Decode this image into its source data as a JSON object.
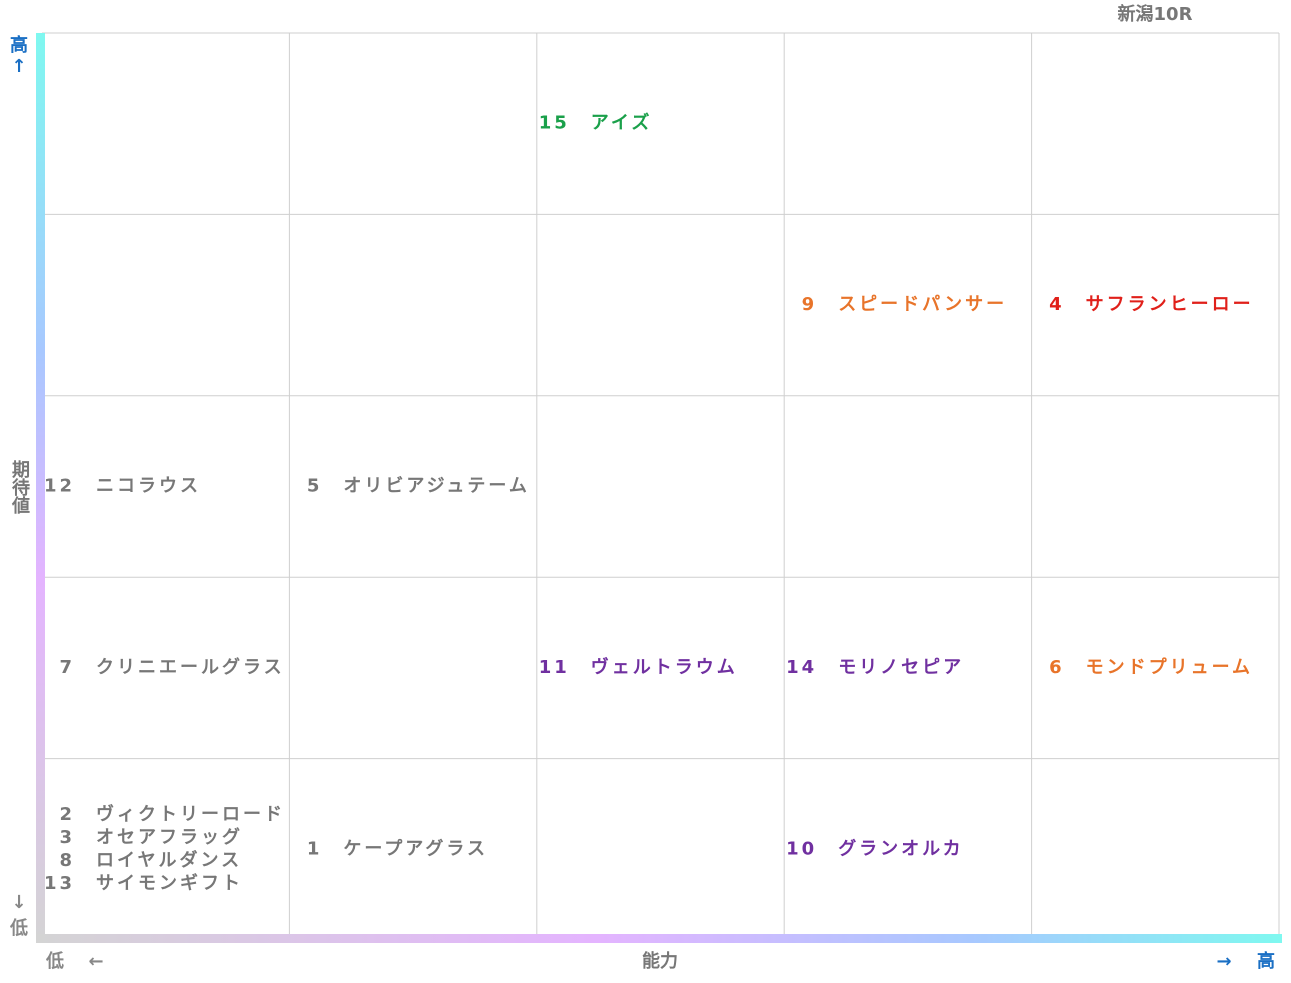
{
  "header": {
    "title": "新潟10R"
  },
  "y_axis": {
    "high": "高",
    "up_arrow": "↑",
    "label": "期待値",
    "low": "低",
    "down_arrow": "↓"
  },
  "x_axis": {
    "low": "低",
    "left_arrow": "←",
    "label": "能力",
    "right_arrow": "→",
    "high": "高"
  },
  "grid": {
    "rows": [
      [
        [],
        [],
        [
          {
            "number": "15",
            "name": "アイズ",
            "color": "#1aa04a"
          }
        ],
        [],
        []
      ],
      [
        [],
        [],
        [],
        [
          {
            "number": "9",
            "name": "スピードパンサー",
            "color": "#e8742a"
          }
        ],
        [
          {
            "number": "4",
            "name": "サフランヒーロー",
            "color": "#e0201a"
          }
        ]
      ],
      [
        [
          {
            "number": "12",
            "name": "ニコラウス",
            "color": "#777777"
          }
        ],
        [
          {
            "number": "5",
            "name": "オリビアジュテーム",
            "color": "#777777"
          }
        ],
        [],
        [],
        []
      ],
      [
        [
          {
            "number": "7",
            "name": "クリニエールグラス",
            "color": "#777777"
          }
        ],
        [],
        [
          {
            "number": "11",
            "name": "ヴェルトラウム",
            "color": "#7030a0"
          }
        ],
        [
          {
            "number": "14",
            "name": "モリノセピア",
            "color": "#7030a0"
          }
        ],
        [
          {
            "number": "6",
            "name": "モンドプリューム",
            "color": "#e8742a"
          }
        ]
      ],
      [
        [
          {
            "number": "2",
            "name": "ヴィクトリーロード",
            "color": "#777777"
          },
          {
            "number": "3",
            "name": "オセアフラッグ",
            "color": "#777777"
          },
          {
            "number": "8",
            "name": "ロイヤルダンス",
            "color": "#777777"
          },
          {
            "number": "13",
            "name": "サイモンギフト",
            "color": "#777777"
          }
        ],
        [
          {
            "number": "1",
            "name": "ケープアグラス",
            "color": "#777777"
          }
        ],
        [],
        [
          {
            "number": "10",
            "name": "グランオルカ",
            "color": "#7030a0"
          }
        ],
        []
      ]
    ]
  }
}
